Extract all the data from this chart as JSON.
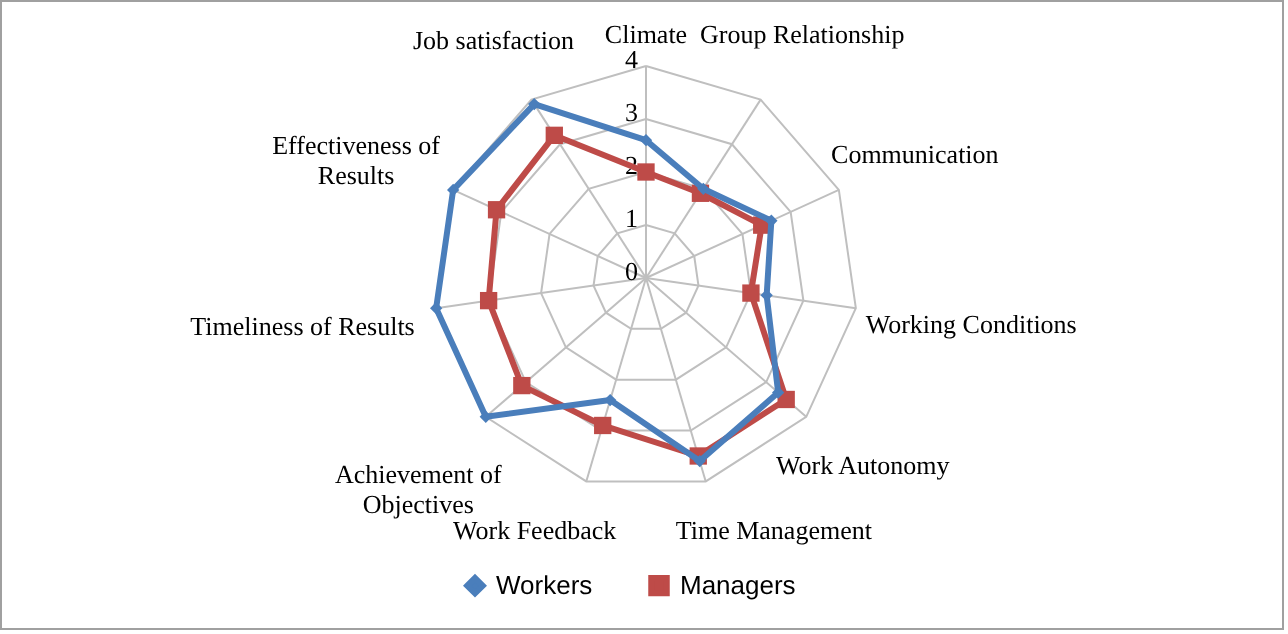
{
  "chart_data": {
    "type": "radar",
    "categories": [
      "Climate",
      "Group Relationship",
      "Communication",
      "Working Conditions",
      "Work Autonomy",
      "Time Management",
      "Work Feedback",
      "Achievement of Objectives",
      "Timeliness of Results",
      "Effectiveness of Results",
      "Job satisfaction"
    ],
    "series": [
      {
        "name": "Workers",
        "color": "#4a7ebb",
        "marker": "diamond",
        "values": [
          2.6,
          2.0,
          2.6,
          2.3,
          3.3,
          3.6,
          2.4,
          4.0,
          4.0,
          4.0,
          3.9
        ]
      },
      {
        "name": "Managers",
        "color": "#be4b48",
        "marker": "square",
        "values": [
          2.0,
          1.9,
          2.4,
          2.0,
          3.5,
          3.5,
          2.9,
          3.1,
          3.0,
          3.1,
          3.2
        ]
      }
    ],
    "ylim": [
      0,
      4
    ],
    "yticks": [
      0,
      1,
      2,
      3,
      4
    ],
    "grid": true,
    "legend": "bottom",
    "line_style": "solid"
  }
}
